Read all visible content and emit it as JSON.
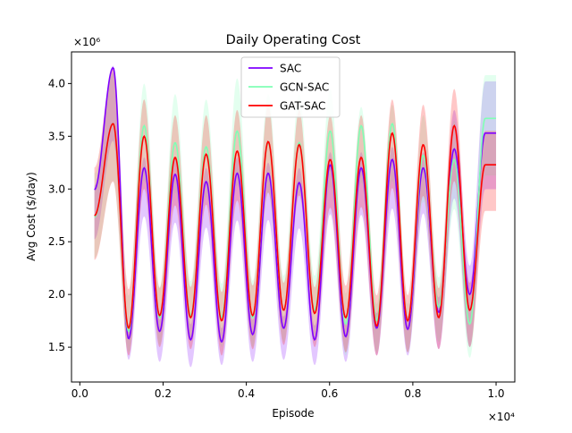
{
  "chart_data": {
    "type": "line",
    "title": "Daily Operating Cost",
    "xlabel": "Episode",
    "ylabel": "Avg Cost ($/day)",
    "x_multiplier": "×10⁴",
    "y_multiplier": "×10⁶",
    "xlim": [
      -0.02,
      1.045
    ],
    "ylim": [
      1.17,
      4.3
    ],
    "x_ticks": [
      "0.0",
      "0.2",
      "0.4",
      "0.6",
      "0.8",
      "1.0"
    ],
    "y_ticks": [
      "1.5",
      "2.0",
      "2.5",
      "3.0",
      "3.5",
      "4.0"
    ],
    "legend_position": "top-center",
    "grid": false,
    "x_range": [
      0.035,
      1.0
    ],
    "period": 0.0745,
    "first_peak_x": 0.08,
    "series": [
      {
        "name": "SAC",
        "color": "#7f00ff",
        "peaks": [
          4.15,
          3.2,
          3.14,
          3.07,
          3.15,
          3.15,
          3.06,
          3.23,
          3.2,
          3.28,
          3.2,
          3.38,
          3.53
        ],
        "troughs": [
          1.58,
          1.65,
          1.57,
          1.55,
          1.62,
          1.68,
          1.57,
          1.6,
          1.68,
          1.67,
          1.83,
          2.0,
          1.8
        ],
        "band_upper": [
          4.17,
          3.3,
          3.3,
          3.2,
          3.3,
          3.25,
          3.2,
          3.35,
          3.35,
          3.4,
          3.35,
          3.75,
          4.02
        ],
        "band_lower": [
          1.38,
          1.36,
          1.31,
          1.33,
          1.36,
          1.38,
          1.33,
          1.36,
          1.42,
          1.42,
          1.48,
          1.5,
          1.4
        ]
      },
      {
        "name": "GCN-SAC",
        "color": "#80ffb4",
        "peaks": [
          3.62,
          3.6,
          3.44,
          3.4,
          3.55,
          3.44,
          3.44,
          3.55,
          3.6,
          3.62,
          3.32,
          3.28,
          3.67
        ],
        "troughs": [
          1.65,
          1.78,
          1.8,
          1.78,
          1.78,
          1.85,
          1.85,
          1.72,
          1.75,
          1.75,
          1.88,
          1.72,
          1.92
        ],
        "band_upper": [
          4.1,
          4.0,
          3.9,
          3.85,
          4.05,
          3.9,
          3.9,
          3.95,
          3.78,
          3.8,
          3.7,
          3.65,
          4.08
        ],
        "band_lower": [
          1.45,
          1.52,
          1.55,
          1.5,
          1.5,
          1.55,
          1.55,
          1.42,
          1.45,
          1.45,
          1.55,
          1.4,
          1.5
        ]
      },
      {
        "name": "GAT-SAC",
        "color": "#ff0000",
        "peaks": [
          3.62,
          3.5,
          3.3,
          3.33,
          3.36,
          3.45,
          3.42,
          3.28,
          3.3,
          3.53,
          3.42,
          3.6,
          3.23
        ],
        "troughs": [
          1.68,
          1.8,
          1.78,
          1.75,
          1.8,
          1.85,
          1.82,
          1.78,
          1.7,
          1.75,
          1.78,
          1.85,
          1.88
        ],
        "band_upper": [
          4.15,
          3.85,
          3.7,
          3.7,
          3.75,
          3.8,
          3.75,
          3.7,
          3.7,
          3.85,
          3.8,
          3.95,
          3.55
        ],
        "band_lower": [
          1.42,
          1.5,
          1.48,
          1.42,
          1.48,
          1.52,
          1.5,
          1.45,
          1.42,
          1.45,
          1.48,
          1.5,
          1.48
        ]
      }
    ]
  }
}
